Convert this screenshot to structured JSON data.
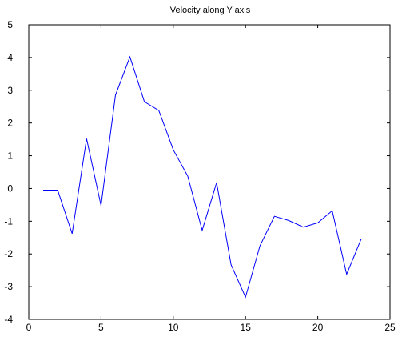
{
  "chart_data": {
    "type": "line",
    "title": "Velocity along Y axis",
    "xlabel": "",
    "ylabel": "",
    "xlim": [
      0,
      25
    ],
    "ylim": [
      -4,
      5
    ],
    "xticks": [
      0,
      5,
      10,
      15,
      20,
      25
    ],
    "yticks": [
      -4,
      -3,
      -2,
      -1,
      0,
      1,
      2,
      3,
      4,
      5
    ],
    "grid": false,
    "legend": "none",
    "colors": {
      "line": "#0000ff",
      "axes": "#000000",
      "background": "#ffffff"
    },
    "series": [
      {
        "x": [
          1,
          2,
          3,
          4,
          5,
          6,
          7,
          8,
          9,
          10,
          11,
          12,
          13,
          14,
          15,
          16,
          17,
          18,
          19,
          20,
          21,
          22,
          23
        ],
        "y": [
          -0.05,
          -0.05,
          -1.38,
          1.52,
          -0.52,
          2.85,
          4.02,
          2.65,
          2.38,
          1.18,
          0.38,
          -1.28,
          0.18,
          -2.33,
          -3.32,
          -1.75,
          -0.85,
          -0.98,
          -1.18,
          -1.05,
          -0.68,
          -2.62,
          -1.55
        ]
      }
    ]
  }
}
